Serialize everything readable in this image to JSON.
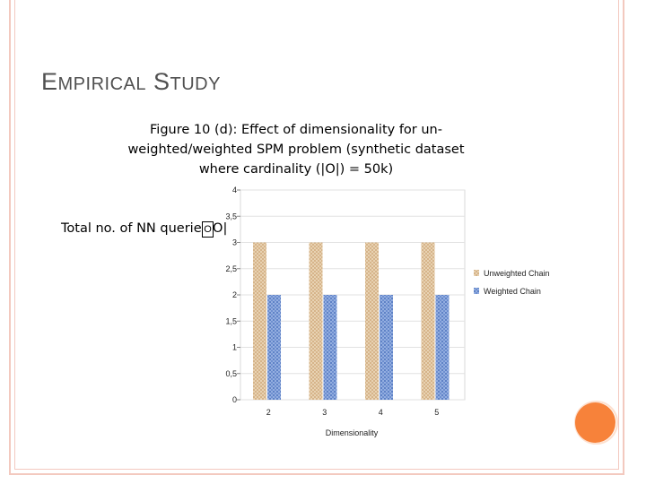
{
  "slide": {
    "title_cap1": "E",
    "title_rest1": "MPIRICAL",
    "title_cap2": "S",
    "title_rest2": "TUDY"
  },
  "chart_data": {
    "type": "bar",
    "title": "Figure 10 (d): Effect of dimensionality for un-weighted/weighted SPM problem (synthetic dataset where cardinality (|O|) = 50k)",
    "xlabel": "Dimensionality",
    "ylabel": "Total no. of NN queries|O|",
    "ylabel_box": "O",
    "categories": [
      "2",
      "3",
      "4",
      "5"
    ],
    "ylim": [
      0,
      4
    ],
    "yticks": [
      "0",
      "0,5",
      "1",
      "1,5",
      "2",
      "2,5",
      "3",
      "3,5",
      "4"
    ],
    "yticks_values": [
      0,
      0.5,
      1,
      1.5,
      2,
      2.5,
      3,
      3.5,
      4
    ],
    "grid": true,
    "legend_position": "right",
    "series": [
      {
        "name": "Unweighted Chain",
        "values": [
          3,
          3,
          3,
          3
        ],
        "color": "#e2c8a4"
      },
      {
        "name": "Weighted Chain",
        "values": [
          2,
          2,
          2,
          2
        ],
        "color": "#7f9fd6"
      }
    ]
  },
  "colors": {
    "frame": "#f3c9bf",
    "accent_dot": "#f7823a"
  }
}
